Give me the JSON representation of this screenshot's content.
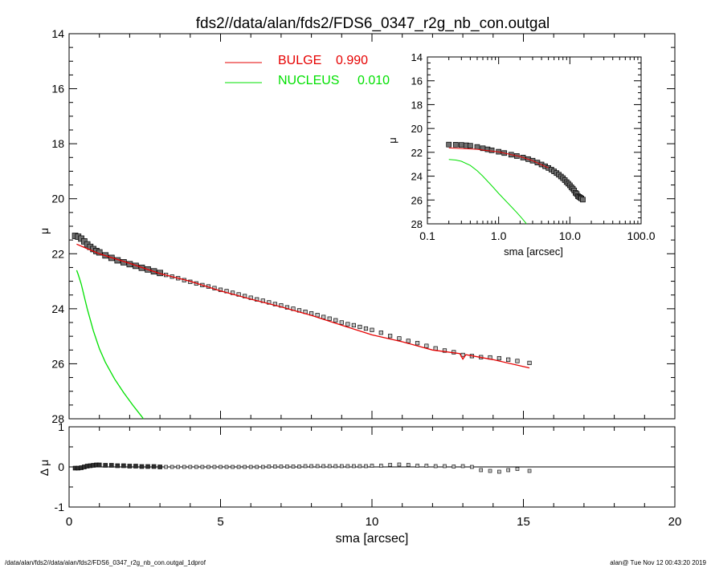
{
  "title": "fds2//data/alan/fds2/FDS6_0347_r2g_nb_con.outgal",
  "footer": {
    "left": "/data/alan/fds2//data/alan/fds2/FDS6_0347_r2g_nb_con.outgal_1dprof",
    "right": "alan@  Tue Nov 12 00:43:20 2019"
  },
  "colors": {
    "data": "#000000",
    "bulge": "#e60000",
    "nucleus": "#00e000",
    "axis": "#000000"
  },
  "chart_data": [
    {
      "type": "scatter",
      "panel": "main",
      "xlabel": "sma [arcsec]",
      "ylabel": "μ",
      "xlim": [
        0,
        20
      ],
      "ylim": [
        28,
        14
      ],
      "y_inverted": true,
      "xticks": [
        "0",
        "5",
        "10",
        "15",
        "20"
      ],
      "yticks": [
        "14",
        "16",
        "18",
        "20",
        "22",
        "24",
        "26",
        "28"
      ],
      "legend": {
        "placement": "top-center",
        "entries": [
          {
            "label": "BULGE",
            "value": "0.990",
            "color": "#e60000"
          },
          {
            "label": "NUCLEUS",
            "value": "0.010",
            "color": "#00e000"
          }
        ]
      },
      "series": [
        {
          "name": "data",
          "style": "markers",
          "x": [
            0.2,
            0.3,
            0.4,
            0.5,
            0.6,
            0.7,
            0.8,
            0.9,
            1.0,
            1.2,
            1.4,
            1.6,
            1.8,
            2.0,
            2.2,
            2.4,
            2.6,
            2.8,
            3.0,
            3.2,
            3.4,
            3.6,
            3.8,
            4.0,
            4.2,
            4.4,
            4.6,
            4.8,
            5.0,
            5.2,
            5.4,
            5.6,
            5.8,
            6.0,
            6.2,
            6.4,
            6.6,
            6.8,
            7.0,
            7.2,
            7.4,
            7.6,
            7.8,
            8.0,
            8.2,
            8.4,
            8.6,
            8.8,
            9.0,
            9.2,
            9.4,
            9.6,
            9.8,
            10.0,
            10.3,
            10.6,
            10.9,
            11.2,
            11.5,
            11.8,
            12.1,
            12.4,
            12.7,
            13.0,
            13.3,
            13.6,
            13.9,
            14.2,
            14.5,
            14.8,
            15.2
          ],
          "y": [
            21.35,
            21.38,
            21.45,
            21.55,
            21.66,
            21.75,
            21.83,
            21.9,
            21.95,
            22.06,
            22.15,
            22.24,
            22.31,
            22.38,
            22.44,
            22.51,
            22.57,
            22.64,
            22.7,
            22.77,
            22.83,
            22.89,
            22.96,
            23.02,
            23.08,
            23.14,
            23.19,
            23.25,
            23.31,
            23.36,
            23.42,
            23.48,
            23.54,
            23.6,
            23.66,
            23.71,
            23.77,
            23.83,
            23.88,
            23.95,
            24.0,
            24.06,
            24.11,
            24.17,
            24.23,
            24.3,
            24.36,
            24.42,
            24.5,
            24.56,
            24.6,
            24.66,
            24.72,
            24.77,
            24.87,
            24.99,
            25.08,
            25.17,
            25.25,
            25.35,
            25.44,
            25.52,
            25.58,
            25.68,
            25.72,
            25.76,
            25.77,
            25.8,
            25.85,
            25.9,
            25.97
          ]
        },
        {
          "name": "BULGE",
          "style": "line",
          "x": [
            0.25,
            0.5,
            1.0,
            2.0,
            3.0,
            4.0,
            5.0,
            6.0,
            7.0,
            8.0,
            9.0,
            10.0,
            11.0,
            12.0,
            12.9,
            13.0,
            13.1,
            14.0,
            15.2
          ],
          "y": [
            21.65,
            21.77,
            22.0,
            22.35,
            22.72,
            23.0,
            23.35,
            23.65,
            23.93,
            24.24,
            24.6,
            24.95,
            25.2,
            25.5,
            25.63,
            25.83,
            25.67,
            25.85,
            26.15
          ]
        },
        {
          "name": "NUCLEUS",
          "style": "line",
          "x": [
            0.25,
            0.3,
            0.4,
            0.5,
            0.6,
            0.8,
            1.0,
            1.2,
            1.5,
            1.8,
            2.1,
            2.4,
            2.45
          ],
          "y": [
            22.6,
            22.75,
            23.1,
            23.55,
            24.0,
            24.8,
            25.45,
            25.95,
            26.55,
            27.05,
            27.5,
            27.92,
            28.0
          ]
        }
      ]
    },
    {
      "type": "scatter",
      "panel": "residual",
      "xlabel": "sma [arcsec]",
      "ylabel": "Δ μ",
      "xlim": [
        0,
        20
      ],
      "ylim": [
        -1,
        1
      ],
      "yticks": [
        "1",
        "0",
        "-1"
      ],
      "series": [
        {
          "name": "residual",
          "style": "markers",
          "x": [
            0.2,
            0.3,
            0.4,
            0.5,
            0.6,
            0.7,
            0.8,
            0.9,
            1.0,
            1.2,
            1.4,
            1.6,
            1.8,
            2.0,
            2.2,
            2.4,
            2.6,
            2.8,
            3.0,
            3.2,
            3.4,
            3.6,
            3.8,
            4.0,
            4.2,
            4.4,
            4.6,
            4.8,
            5.0,
            5.2,
            5.4,
            5.6,
            5.8,
            6.0,
            6.2,
            6.4,
            6.6,
            6.8,
            7.0,
            7.2,
            7.4,
            7.6,
            7.8,
            8.0,
            8.2,
            8.4,
            8.6,
            8.8,
            9.0,
            9.2,
            9.4,
            9.6,
            9.8,
            10.0,
            10.3,
            10.6,
            10.9,
            11.2,
            11.5,
            11.8,
            12.1,
            12.4,
            12.7,
            13.0,
            13.3,
            13.6,
            13.9,
            14.2,
            14.5,
            14.8,
            15.2
          ],
          "y": [
            -0.03,
            -0.03,
            -0.02,
            0.0,
            0.02,
            0.03,
            0.04,
            0.05,
            0.05,
            0.04,
            0.04,
            0.03,
            0.03,
            0.02,
            0.02,
            0.01,
            0.01,
            0.01,
            0.0,
            0.0,
            0.0,
            0.0,
            0.0,
            0.0,
            0.0,
            0.0,
            0.0,
            0.0,
            0.0,
            0.0,
            0.0,
            0.0,
            0.0,
            0.0,
            0.0,
            0.0,
            0.01,
            0.01,
            0.01,
            0.01,
            0.01,
            0.01,
            0.02,
            0.02,
            0.02,
            0.02,
            0.02,
            0.02,
            0.02,
            0.02,
            0.02,
            0.02,
            0.02,
            0.03,
            0.03,
            0.05,
            0.06,
            0.05,
            0.03,
            0.03,
            0.02,
            0.02,
            0.01,
            0.02,
            0.0,
            -0.08,
            -0.1,
            -0.12,
            -0.08,
            -0.05,
            -0.1
          ]
        }
      ]
    },
    {
      "type": "scatter",
      "panel": "inset",
      "xlabel": "sma [arcsec]",
      "ylabel": "μ",
      "x_scale": "log",
      "xlim": [
        0.1,
        100
      ],
      "ylim": [
        28,
        14
      ],
      "y_inverted": true,
      "xticks": [
        "0.1",
        "1.0",
        "10.0",
        "100.0"
      ],
      "yticks": [
        "14",
        "16",
        "18",
        "20",
        "22",
        "24",
        "26",
        "28"
      ],
      "series": [
        {
          "name": "data",
          "style": "markers",
          "x": [
            0.2,
            0.25,
            0.3,
            0.35,
            0.4,
            0.5,
            0.6,
            0.7,
            0.8,
            1.0,
            1.2,
            1.5,
            1.8,
            2.2,
            2.6,
            3.0,
            3.5,
            4.0,
            4.5,
            5.0,
            5.5,
            6.0,
            6.5,
            7.0,
            7.5,
            8.0,
            8.5,
            9.0,
            9.5,
            10.0,
            10.5,
            11.0,
            11.5,
            12.0,
            12.5,
            13.0,
            13.5,
            14.0,
            14.5,
            15.2
          ],
          "y": [
            21.35,
            21.36,
            21.38,
            21.41,
            21.45,
            21.55,
            21.66,
            21.75,
            21.83,
            21.95,
            22.06,
            22.2,
            22.31,
            22.44,
            22.57,
            22.7,
            22.86,
            23.02,
            23.17,
            23.31,
            23.45,
            23.6,
            23.74,
            23.88,
            24.03,
            24.17,
            24.33,
            24.5,
            24.63,
            24.77,
            24.93,
            25.05,
            25.2,
            25.4,
            25.5,
            25.68,
            25.74,
            25.8,
            25.87,
            25.97
          ]
        },
        {
          "name": "BULGE",
          "style": "line",
          "x": [
            0.2,
            0.5,
            1.0,
            2.0,
            3.0,
            5.0
          ],
          "y": [
            21.63,
            21.75,
            21.97,
            22.35,
            22.7,
            23.3
          ]
        },
        {
          "name": "NUCLEUS",
          "style": "line",
          "x": [
            0.2,
            0.25,
            0.3,
            0.4,
            0.5,
            0.6,
            0.8,
            1.0,
            1.2,
            1.5,
            1.8,
            2.1,
            2.4,
            2.45
          ],
          "y": [
            22.6,
            22.65,
            22.75,
            23.1,
            23.55,
            24.0,
            24.8,
            25.45,
            25.95,
            26.55,
            27.05,
            27.5,
            27.92,
            28.0
          ]
        }
      ]
    }
  ]
}
